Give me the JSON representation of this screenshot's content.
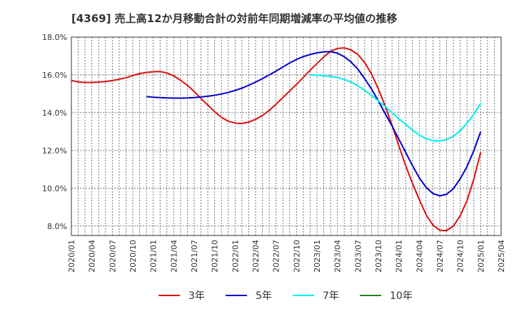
{
  "chart_data": {
    "type": "line",
    "title": "[4369]  売上高12か月移動合計の対前年同期増減率の平均値の推移",
    "xlabel": "",
    "ylabel": "",
    "x_ticks": [
      "2020/01",
      "2020/04",
      "2020/07",
      "2020/10",
      "2021/01",
      "2021/04",
      "2021/07",
      "2021/10",
      "2022/01",
      "2022/04",
      "2022/07",
      "2022/10",
      "2023/01",
      "2023/04",
      "2023/07",
      "2023/10",
      "2024/01",
      "2024/04",
      "2024/07",
      "2024/10",
      "2025/01",
      "2025/04"
    ],
    "y_ticks": [
      "8.0%",
      "10.0%",
      "12.0%",
      "14.0%",
      "16.0%",
      "18.0%"
    ],
    "ylim": [
      7.5,
      18.0
    ],
    "xlim": [
      "2020/01",
      "2025/04"
    ],
    "grid": true,
    "legend_position": "bottom",
    "series": [
      {
        "name": "3年",
        "color": "#dd1111",
        "points": [
          [
            "2020/01",
            15.7
          ],
          [
            "2020/02",
            15.63
          ],
          [
            "2020/03",
            15.6
          ],
          [
            "2020/04",
            15.6
          ],
          [
            "2020/05",
            15.62
          ],
          [
            "2020/06",
            15.65
          ],
          [
            "2020/07",
            15.7
          ],
          [
            "2020/08",
            15.77
          ],
          [
            "2020/09",
            15.85
          ],
          [
            "2020/10",
            15.97
          ],
          [
            "2020/11",
            16.07
          ],
          [
            "2020/12",
            16.13
          ],
          [
            "2021/01",
            16.17
          ],
          [
            "2021/02",
            16.18
          ],
          [
            "2021/03",
            16.1
          ],
          [
            "2021/04",
            15.95
          ],
          [
            "2021/05",
            15.72
          ],
          [
            "2021/06",
            15.45
          ],
          [
            "2021/07",
            15.12
          ],
          [
            "2021/08",
            14.75
          ],
          [
            "2021/09",
            14.4
          ],
          [
            "2021/10",
            14.05
          ],
          [
            "2021/11",
            13.75
          ],
          [
            "2021/12",
            13.55
          ],
          [
            "2022/01",
            13.45
          ],
          [
            "2022/02",
            13.43
          ],
          [
            "2022/03",
            13.5
          ],
          [
            "2022/04",
            13.65
          ],
          [
            "2022/05",
            13.85
          ],
          [
            "2022/06",
            14.12
          ],
          [
            "2022/07",
            14.45
          ],
          [
            "2022/08",
            14.8
          ],
          [
            "2022/09",
            15.15
          ],
          [
            "2022/10",
            15.5
          ],
          [
            "2022/11",
            15.87
          ],
          [
            "2022/12",
            16.25
          ],
          [
            "2023/01",
            16.6
          ],
          [
            "2023/02",
            16.95
          ],
          [
            "2023/03",
            17.25
          ],
          [
            "2023/04",
            17.4
          ],
          [
            "2023/05",
            17.43
          ],
          [
            "2023/06",
            17.32
          ],
          [
            "2023/07",
            17.08
          ],
          [
            "2023/08",
            16.65
          ],
          [
            "2023/09",
            16.05
          ],
          [
            "2023/10",
            15.25
          ],
          [
            "2023/11",
            14.35
          ],
          [
            "2023/12",
            13.35
          ],
          [
            "2024/01",
            12.25
          ],
          [
            "2024/02",
            11.2
          ],
          [
            "2024/03",
            10.25
          ],
          [
            "2024/04",
            9.4
          ],
          [
            "2024/05",
            8.6
          ],
          [
            "2024/06",
            8.05
          ],
          [
            "2024/07",
            7.78
          ],
          [
            "2024/08",
            7.76
          ],
          [
            "2024/09",
            8.0
          ],
          [
            "2024/10",
            8.55
          ],
          [
            "2024/11",
            9.35
          ],
          [
            "2024/12",
            10.5
          ],
          [
            "2025/01",
            11.9
          ]
        ]
      },
      {
        "name": "5年",
        "color": "#0000cc",
        "points": [
          [
            "2020/12",
            14.85
          ],
          [
            "2021/01",
            14.82
          ],
          [
            "2021/02",
            14.8
          ],
          [
            "2021/03",
            14.78
          ],
          [
            "2021/04",
            14.77
          ],
          [
            "2021/05",
            14.77
          ],
          [
            "2021/06",
            14.78
          ],
          [
            "2021/07",
            14.8
          ],
          [
            "2021/08",
            14.83
          ],
          [
            "2021/09",
            14.87
          ],
          [
            "2021/10",
            14.92
          ],
          [
            "2021/11",
            14.99
          ],
          [
            "2021/12",
            15.07
          ],
          [
            "2022/01",
            15.18
          ],
          [
            "2022/02",
            15.3
          ],
          [
            "2022/03",
            15.45
          ],
          [
            "2022/04",
            15.62
          ],
          [
            "2022/05",
            15.8
          ],
          [
            "2022/06",
            16.0
          ],
          [
            "2022/07",
            16.2
          ],
          [
            "2022/08",
            16.42
          ],
          [
            "2022/09",
            16.63
          ],
          [
            "2022/10",
            16.82
          ],
          [
            "2022/11",
            16.97
          ],
          [
            "2022/12",
            17.08
          ],
          [
            "2023/01",
            17.17
          ],
          [
            "2023/02",
            17.22
          ],
          [
            "2023/03",
            17.23
          ],
          [
            "2023/04",
            17.15
          ],
          [
            "2023/05",
            16.96
          ],
          [
            "2023/06",
            16.68
          ],
          [
            "2023/07",
            16.3
          ],
          [
            "2023/08",
            15.8
          ],
          [
            "2023/09",
            15.25
          ],
          [
            "2023/10",
            14.62
          ],
          [
            "2023/11",
            13.95
          ],
          [
            "2023/12",
            13.3
          ],
          [
            "2024/01",
            12.6
          ],
          [
            "2024/02",
            11.9
          ],
          [
            "2024/03",
            11.2
          ],
          [
            "2024/04",
            10.55
          ],
          [
            "2024/05",
            10.05
          ],
          [
            "2024/06",
            9.72
          ],
          [
            "2024/07",
            9.6
          ],
          [
            "2024/08",
            9.68
          ],
          [
            "2024/09",
            9.98
          ],
          [
            "2024/10",
            10.5
          ],
          [
            "2024/11",
            11.15
          ],
          [
            "2024/12",
            12.0
          ],
          [
            "2025/01",
            13.0
          ]
        ]
      },
      {
        "name": "7年",
        "color": "#00eeee",
        "points": [
          [
            "2022/12",
            16.0
          ],
          [
            "2023/01",
            15.98
          ],
          [
            "2023/02",
            15.95
          ],
          [
            "2023/03",
            15.92
          ],
          [
            "2023/04",
            15.86
          ],
          [
            "2023/05",
            15.76
          ],
          [
            "2023/06",
            15.62
          ],
          [
            "2023/07",
            15.42
          ],
          [
            "2023/08",
            15.18
          ],
          [
            "2023/09",
            14.92
          ],
          [
            "2023/10",
            14.62
          ],
          [
            "2023/11",
            14.32
          ],
          [
            "2023/12",
            14.0
          ],
          [
            "2024/01",
            13.68
          ],
          [
            "2024/02",
            13.38
          ],
          [
            "2024/03",
            13.08
          ],
          [
            "2024/04",
            12.82
          ],
          [
            "2024/05",
            12.62
          ],
          [
            "2024/06",
            12.52
          ],
          [
            "2024/07",
            12.5
          ],
          [
            "2024/08",
            12.58
          ],
          [
            "2024/09",
            12.75
          ],
          [
            "2024/10",
            13.05
          ],
          [
            "2024/11",
            13.45
          ],
          [
            "2024/12",
            13.92
          ],
          [
            "2025/01",
            14.5
          ]
        ]
      },
      {
        "name": "10年",
        "color": "#228822",
        "points": []
      }
    ]
  }
}
